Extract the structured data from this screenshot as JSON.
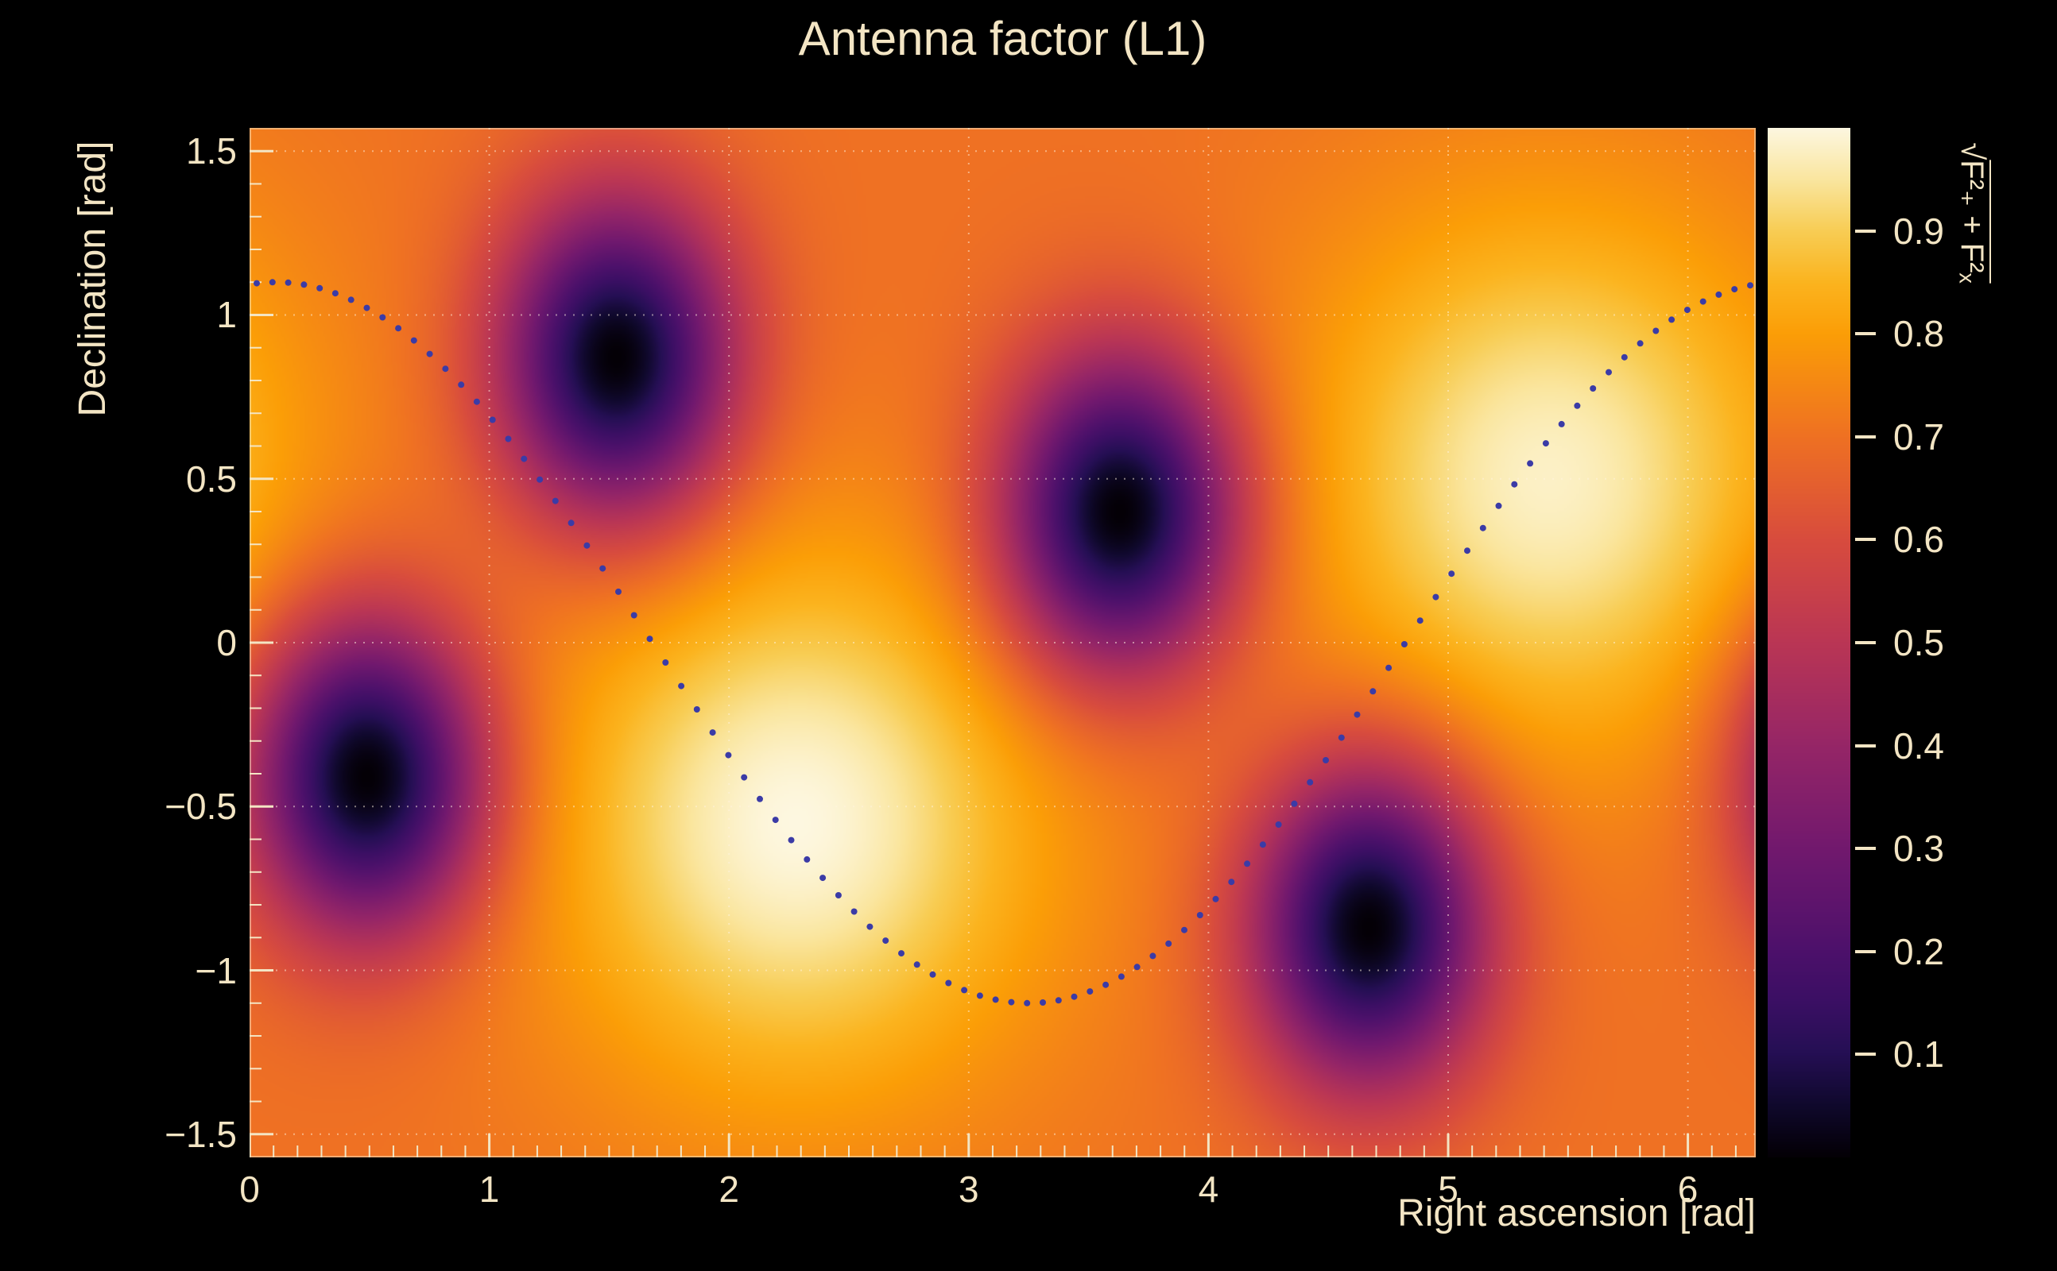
{
  "title": "Antenna factor (L1)",
  "axes": {
    "x": {
      "label": "Right ascension [rad]",
      "min": 0,
      "max": 6.2832,
      "major_ticks": [
        0,
        1,
        2,
        3,
        4,
        5,
        6
      ],
      "tick_labels": [
        "0",
        "1",
        "2",
        "3",
        "4",
        "5",
        "6"
      ],
      "minor_step": 0.1
    },
    "y": {
      "label": "Declination [rad]",
      "min": -1.5708,
      "max": 1.5708,
      "major_ticks": [
        -1.5,
        -1,
        -0.5,
        0,
        0.5,
        1,
        1.5
      ],
      "tick_labels": [
        "−1.5",
        "−1",
        "−0.5",
        "0",
        "0.5",
        "1",
        "1.5"
      ],
      "minor_step": 0.1
    },
    "grid": {
      "x_values": [
        1,
        2,
        3,
        4,
        5,
        6
      ],
      "y_values": [
        -1.5,
        -1,
        -0.5,
        0,
        0.5,
        1,
        1.5
      ]
    }
  },
  "colorbar": {
    "radical": "√",
    "expr": "F²₊ + F²ₓ",
    "min": 0,
    "max": 1,
    "tick_values": [
      0.1,
      0.2,
      0.3,
      0.4,
      0.5,
      0.6,
      0.7,
      0.8,
      0.9
    ],
    "tick_labels": [
      "0.1",
      "0.2",
      "0.3",
      "0.4",
      "0.5",
      "0.6",
      "0.7",
      "0.8",
      "0.9"
    ]
  },
  "style": {
    "background": "#000000",
    "text_color": "#f3e5c4",
    "grid_color": "rgba(255,243,224,0.5)",
    "dot_color": "#3b3ba6"
  },
  "chart_data": {
    "type": "heatmap",
    "title": "Antenna factor (L1)",
    "xlabel": "Right ascension [rad]",
    "ylabel": "Declination [rad]",
    "zlabel": "√(F₊² + Fₓ²)",
    "xlim": [
      0,
      6.2832
    ],
    "ylim": [
      -1.5708,
      1.5708
    ],
    "zlim": [
      0,
      1
    ],
    "grid": true,
    "legend_position": "none",
    "colorbar_side": "right",
    "field": {
      "description": "Smooth antenna-response field sqrt(F+^2+Fx^2): base level with two broad maxima (~1.0) and four nulls (~0.0), periodic in right ascension",
      "base": 0.7,
      "maxima": [
        {
          "ra": 2.28,
          "dec": -0.55,
          "value": 1.0,
          "sigma_ra": 0.72,
          "sigma_dec": 0.58
        },
        {
          "ra": 5.42,
          "dec": 0.5,
          "value": 0.98,
          "sigma_ra": 0.72,
          "sigma_dec": 0.58
        }
      ],
      "minima": [
        {
          "ra": 1.53,
          "dec": 0.87,
          "value": 0.0,
          "sigma": 0.34
        },
        {
          "ra": 3.63,
          "dec": 0.4,
          "value": 0.0,
          "sigma": 0.34
        },
        {
          "ra": 0.49,
          "dec": -0.41,
          "value": 0.0,
          "sigma": 0.34
        },
        {
          "ra": 4.67,
          "dec": -0.87,
          "value": 0.0,
          "sigma": 0.34
        }
      ]
    },
    "colormap": [
      [
        0.0,
        "#040006"
      ],
      [
        0.05,
        "#10092d"
      ],
      [
        0.1,
        "#250f54"
      ],
      [
        0.15,
        "#3b0f64"
      ],
      [
        0.2,
        "#4d116b"
      ],
      [
        0.3,
        "#72196e"
      ],
      [
        0.4,
        "#962667"
      ],
      [
        0.5,
        "#ba3655"
      ],
      [
        0.6,
        "#d84c3e"
      ],
      [
        0.7,
        "#ef7123"
      ],
      [
        0.8,
        "#fb9e07"
      ],
      [
        0.85,
        "#fbb41f"
      ],
      [
        0.9,
        "#f8cd54"
      ],
      [
        0.95,
        "#fae69f"
      ],
      [
        1.0,
        "#fdf7e0"
      ]
    ],
    "overlay_curve": {
      "description": "dotted sky track: dec = amplitude * sin(ra + phase)",
      "style": "dotted",
      "color": "#3b3ba6",
      "amplitude": -1.1,
      "phase": -1.68,
      "ra_start": 0.03,
      "ra_end": 6.26,
      "points": 96,
      "dot_radius": 4
    }
  }
}
